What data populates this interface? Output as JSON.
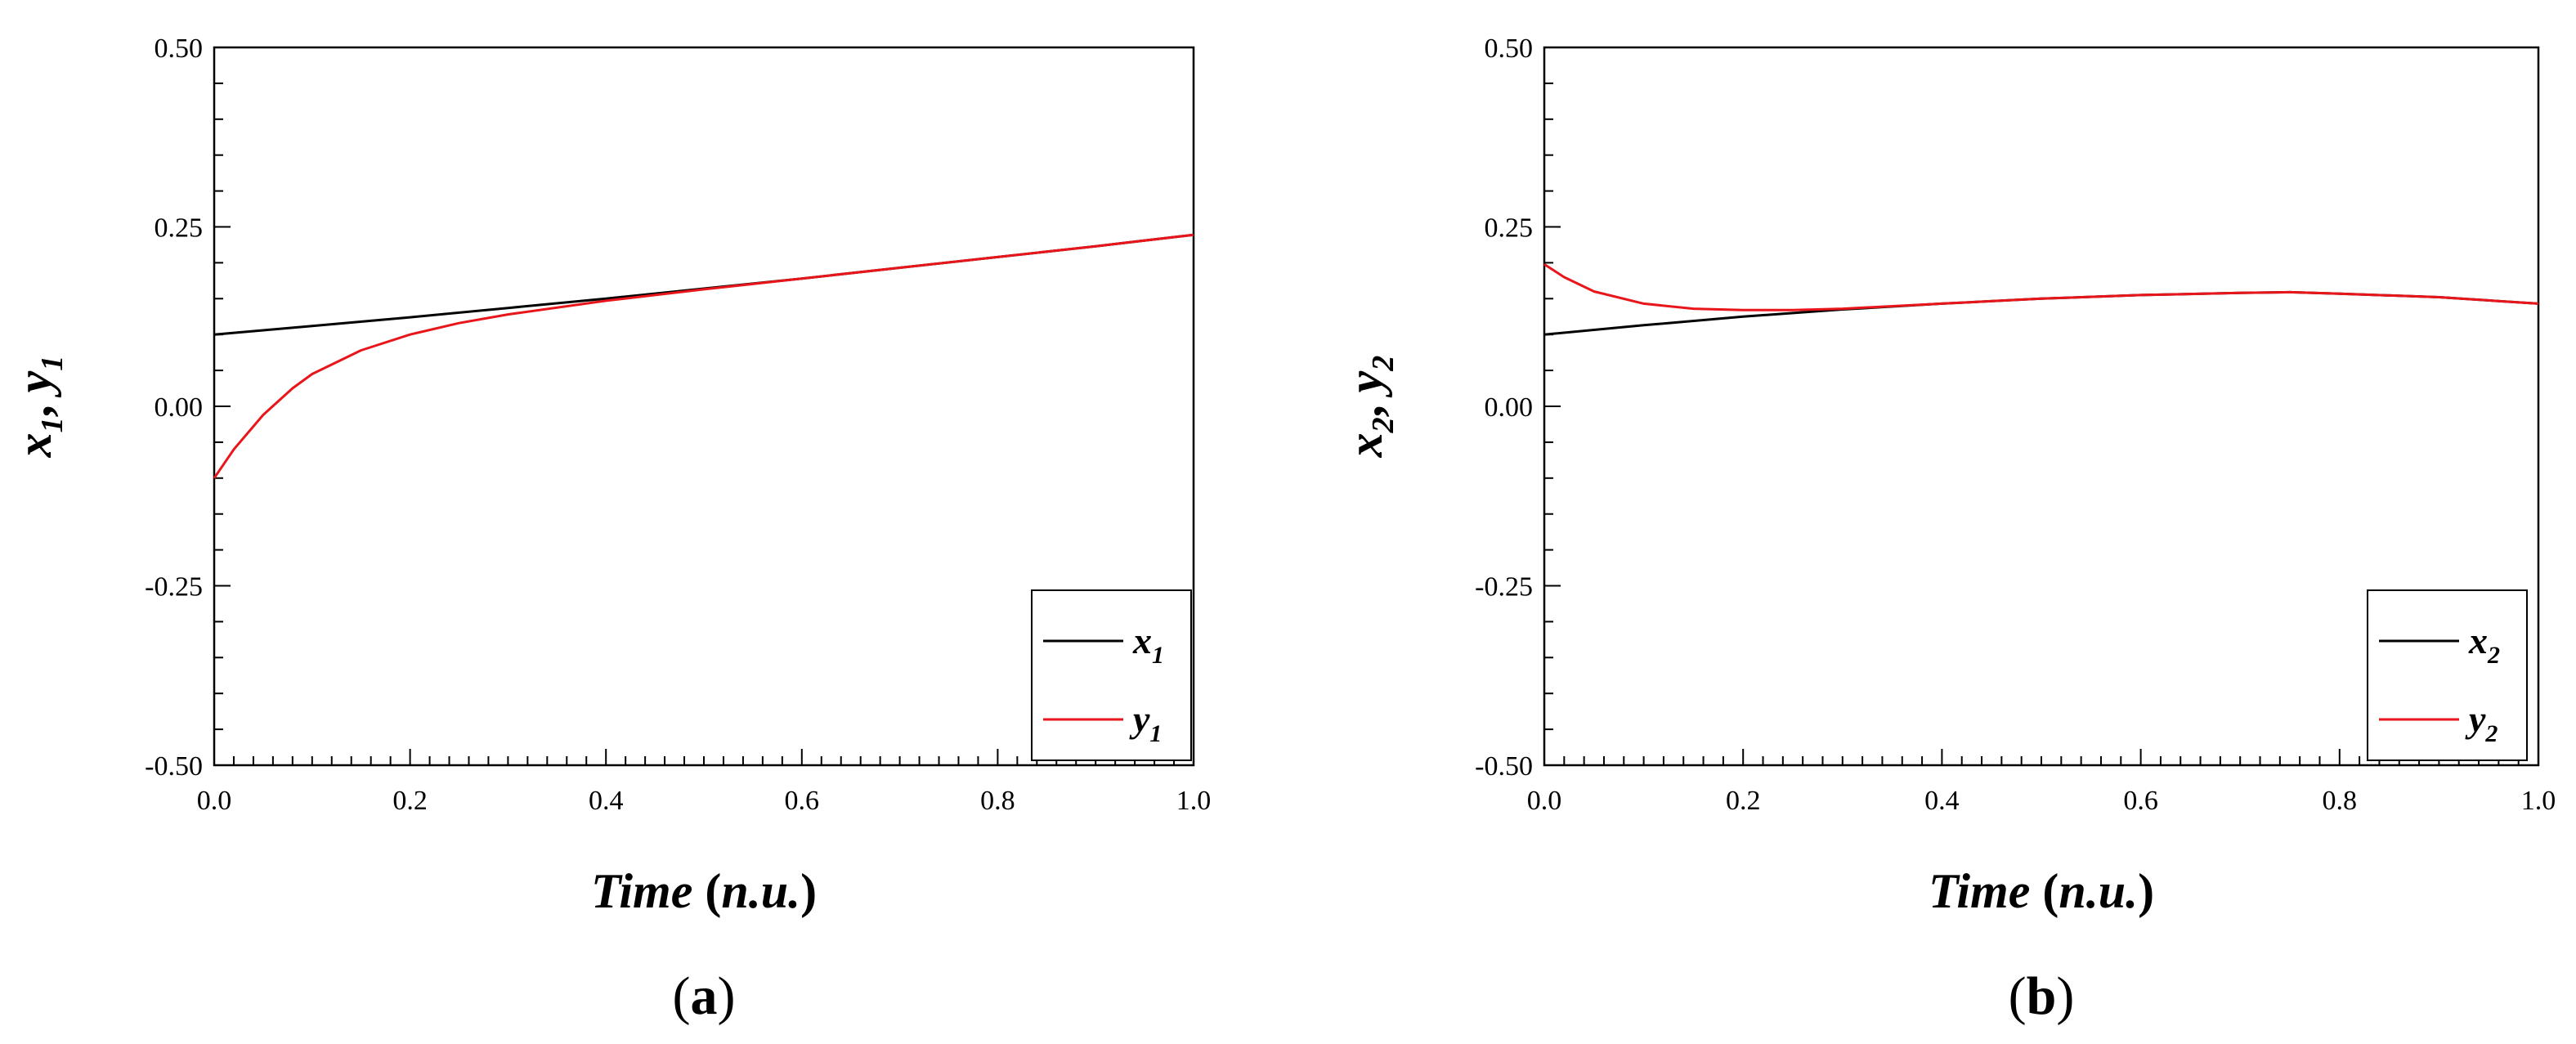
{
  "chart_data": [
    {
      "type": "line",
      "panel_label": "(a)",
      "panel_letter": "a",
      "xlabel": "Time (n.u.)",
      "xlabel_italic": "Time",
      "xlabel_unit": "n.u.",
      "ylabel": "x1, y1",
      "xlim": [
        0.0,
        1.0
      ],
      "ylim": [
        -0.5,
        0.5
      ],
      "xticks": [
        "0.0",
        "0.2",
        "0.4",
        "0.6",
        "0.8",
        "1.0"
      ],
      "yticks": [
        "-0.50",
        "-0.25",
        "0.00",
        "0.25",
        "0.50"
      ],
      "legend_position": "bottom-right",
      "series": [
        {
          "name": "x1",
          "base": "x",
          "sub": "1",
          "color": "#000000",
          "x": [
            0.0,
            0.1,
            0.2,
            0.3,
            0.4,
            0.5,
            0.6,
            0.7,
            0.8,
            0.9,
            1.0
          ],
          "y": [
            0.1,
            0.112,
            0.124,
            0.137,
            0.15,
            0.164,
            0.178,
            0.193,
            0.208,
            0.223,
            0.239
          ]
        },
        {
          "name": "y1",
          "base": "y",
          "sub": "1",
          "color": "#e8161b",
          "x": [
            0.0,
            0.02,
            0.05,
            0.08,
            0.1,
            0.15,
            0.2,
            0.25,
            0.3,
            0.4,
            0.5,
            0.6,
            0.7,
            0.8,
            0.9,
            1.0
          ],
          "y": [
            -0.1,
            -0.06,
            -0.012,
            0.025,
            0.045,
            0.078,
            0.1,
            0.116,
            0.128,
            0.147,
            0.163,
            0.178,
            0.193,
            0.208,
            0.223,
            0.239
          ]
        }
      ]
    },
    {
      "type": "line",
      "panel_label": "(b)",
      "panel_letter": "b",
      "xlabel": "Time (n.u.)",
      "xlabel_italic": "Time",
      "xlabel_unit": "n.u.",
      "ylabel": "x2, y2",
      "xlim": [
        0.0,
        1.0
      ],
      "ylim": [
        -0.5,
        0.5
      ],
      "xticks": [
        "0.0",
        "0.2",
        "0.4",
        "0.6",
        "0.8",
        "1.0"
      ],
      "yticks": [
        "-0.50",
        "-0.25",
        "0.00",
        "0.25",
        "0.50"
      ],
      "legend_position": "bottom-right",
      "series": [
        {
          "name": "x2",
          "base": "x",
          "sub": "2",
          "color": "#000000",
          "x": [
            0.0,
            0.1,
            0.2,
            0.3,
            0.4,
            0.5,
            0.6,
            0.7,
            0.75,
            0.8,
            0.9,
            1.0
          ],
          "y": [
            0.1,
            0.113,
            0.125,
            0.135,
            0.143,
            0.15,
            0.155,
            0.158,
            0.159,
            0.157,
            0.152,
            0.143
          ]
        },
        {
          "name": "y2",
          "base": "y",
          "sub": "2",
          "color": "#e8161b",
          "x": [
            0.0,
            0.02,
            0.05,
            0.1,
            0.15,
            0.2,
            0.25,
            0.3,
            0.4,
            0.5,
            0.6,
            0.7,
            0.75,
            0.8,
            0.9,
            1.0
          ],
          "y": [
            0.198,
            0.18,
            0.16,
            0.143,
            0.136,
            0.134,
            0.134,
            0.136,
            0.143,
            0.15,
            0.155,
            0.158,
            0.159,
            0.157,
            0.152,
            0.143
          ]
        }
      ]
    }
  ]
}
